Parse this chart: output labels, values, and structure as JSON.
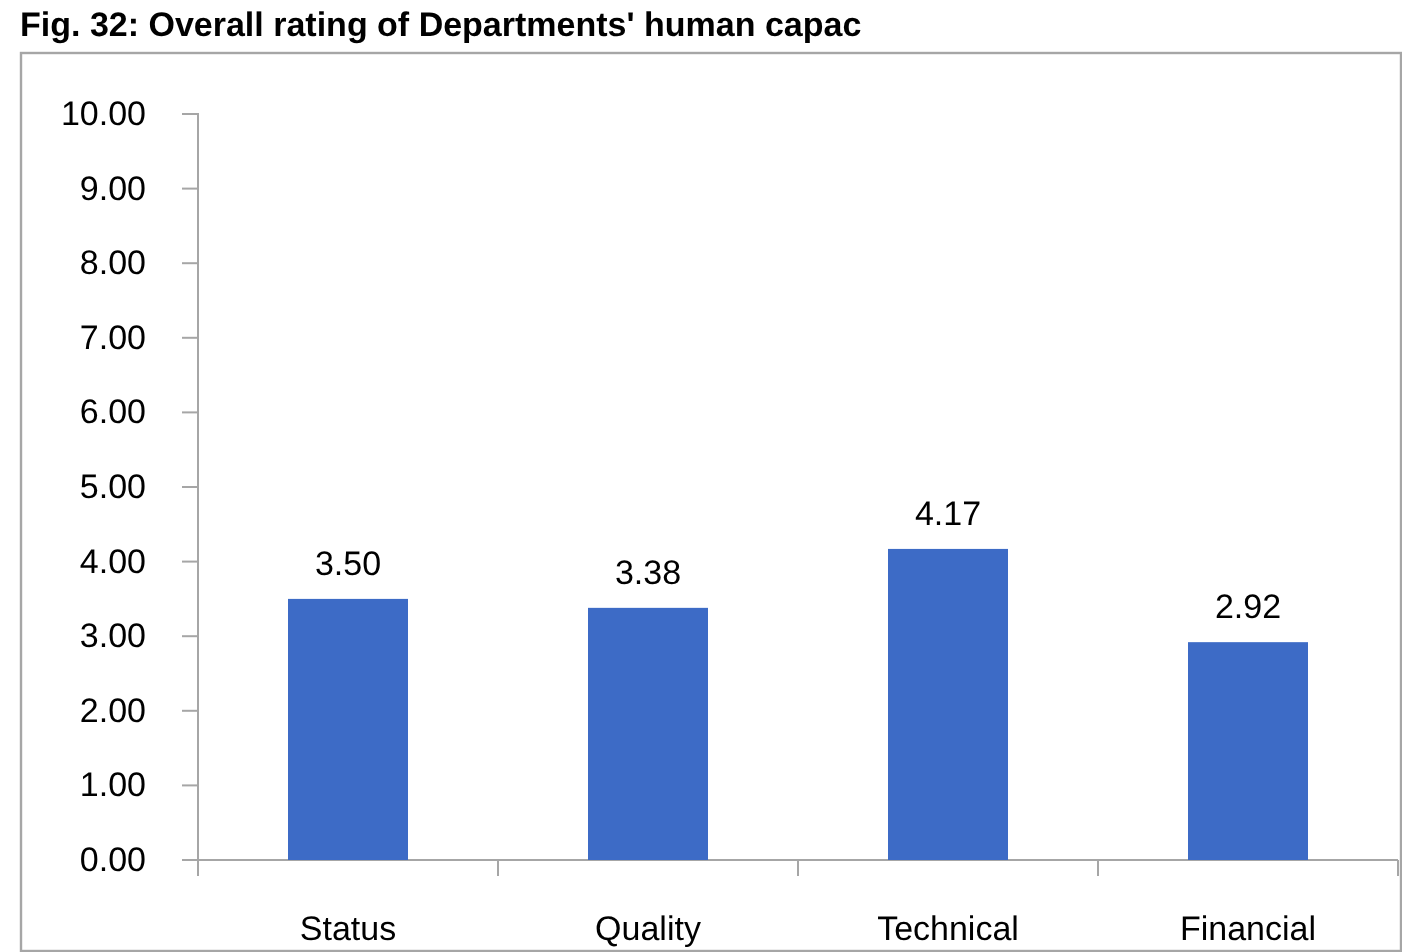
{
  "chart_data": {
    "type": "bar",
    "title": "Fig. 32: Overall rating of Departments' human capac",
    "categories": [
      "Status",
      "Quality",
      "Technical",
      "Financial"
    ],
    "values": [
      3.5,
      3.38,
      4.17,
      2.92
    ],
    "value_labels": [
      "3.50",
      "3.38",
      "4.17",
      "2.92"
    ],
    "color": "#3d6bc6",
    "ylim": [
      0,
      10
    ],
    "yticks": [
      {
        "value": 0,
        "label": "0.00"
      },
      {
        "value": 1,
        "label": "1.00"
      },
      {
        "value": 2,
        "label": "2.00"
      },
      {
        "value": 3,
        "label": "3.00"
      },
      {
        "value": 4,
        "label": "4.00"
      },
      {
        "value": 5,
        "label": "5.00"
      },
      {
        "value": 6,
        "label": "6.00"
      },
      {
        "value": 7,
        "label": "7.00"
      },
      {
        "value": 8,
        "label": "8.00"
      },
      {
        "value": 9,
        "label": "9.00"
      },
      {
        "value": 10,
        "label": "10.00"
      }
    ],
    "grid": false
  }
}
